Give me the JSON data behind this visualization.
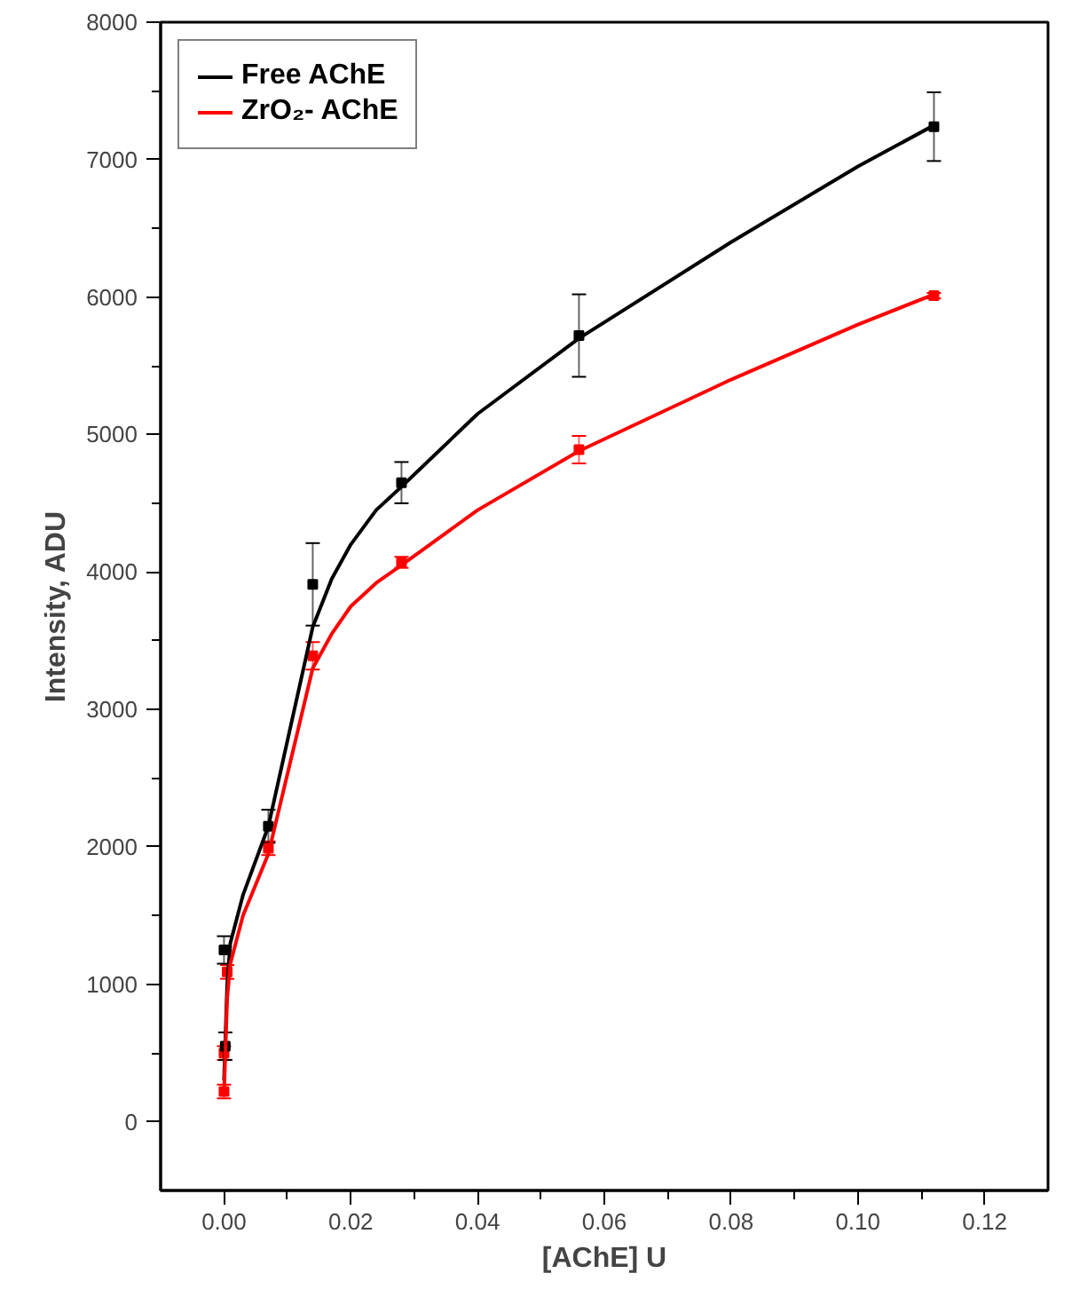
{
  "chart_data": {
    "type": "scatter",
    "xlabel": "[AChE] U",
    "ylabel": "Intensity, ADU",
    "xlim": [
      -0.01,
      0.13
    ],
    "ylim": [
      -500,
      8000
    ],
    "xticks": [
      {
        "value": 0,
        "label": "0.00"
      },
      {
        "value": 0.02,
        "label": "0.02"
      },
      {
        "value": 0.04,
        "label": "0.04"
      },
      {
        "value": 0.06,
        "label": "0.06"
      },
      {
        "value": 0.08,
        "label": "0.08"
      },
      {
        "value": 0.1,
        "label": "0.10"
      },
      {
        "value": 0.12,
        "label": "0.12"
      }
    ],
    "yticks": [
      0,
      1000,
      2000,
      3000,
      4000,
      5000,
      6000,
      7000,
      8000
    ],
    "grid": false,
    "legend": "top left",
    "marker": "square",
    "series": [
      {
        "color": "#ff0000",
        "x": [
          0,
          0,
          0.0005,
          0.007,
          0.014,
          0.028,
          0.056,
          0.112
        ],
        "values": [
          220,
          500,
          1090,
          1990,
          3390,
          4070,
          4890,
          6010
        ],
        "errors": [
          50,
          50,
          50,
          50,
          100,
          40,
          100,
          20
        ]
      },
      {
        "color": "#000000",
        "x": [
          0,
          0.0002,
          0.007,
          0.014,
          0.028,
          0.056,
          0.112
        ],
        "values": [
          1250,
          550,
          2150,
          3910,
          4650,
          5720,
          7240
        ],
        "errors": [
          100,
          100,
          120,
          300,
          150,
          300,
          250
        ]
      },
      {
        "type": "line",
        "marker": "none",
        "name": "Free AChE",
        "color": "#000000",
        "x": [
          0,
          0.0005,
          0.001,
          0.003,
          0.007,
          0.014,
          0.017,
          0.02,
          0.024,
          0.028,
          0.04,
          0.056,
          0.08,
          0.1,
          0.112
        ],
        "values": [
          300,
          1000,
          1300,
          1650,
          2150,
          3600,
          3950,
          4200,
          4450,
          4620,
          5150,
          5700,
          6400,
          6950,
          7250
        ]
      },
      {
        "type": "line",
        "marker": "none",
        "name": "ZrO₂- AChE",
        "color": "#ff0000",
        "x": [
          0,
          0.0005,
          0.001,
          0.003,
          0.007,
          0.014,
          0.017,
          0.02,
          0.024,
          0.028,
          0.04,
          0.056,
          0.08,
          0.1,
          0.112
        ],
        "values": [
          200,
          900,
          1150,
          1500,
          1950,
          3300,
          3550,
          3750,
          3920,
          4050,
          4450,
          4880,
          5400,
          5800,
          6020
        ]
      }
    ]
  }
}
